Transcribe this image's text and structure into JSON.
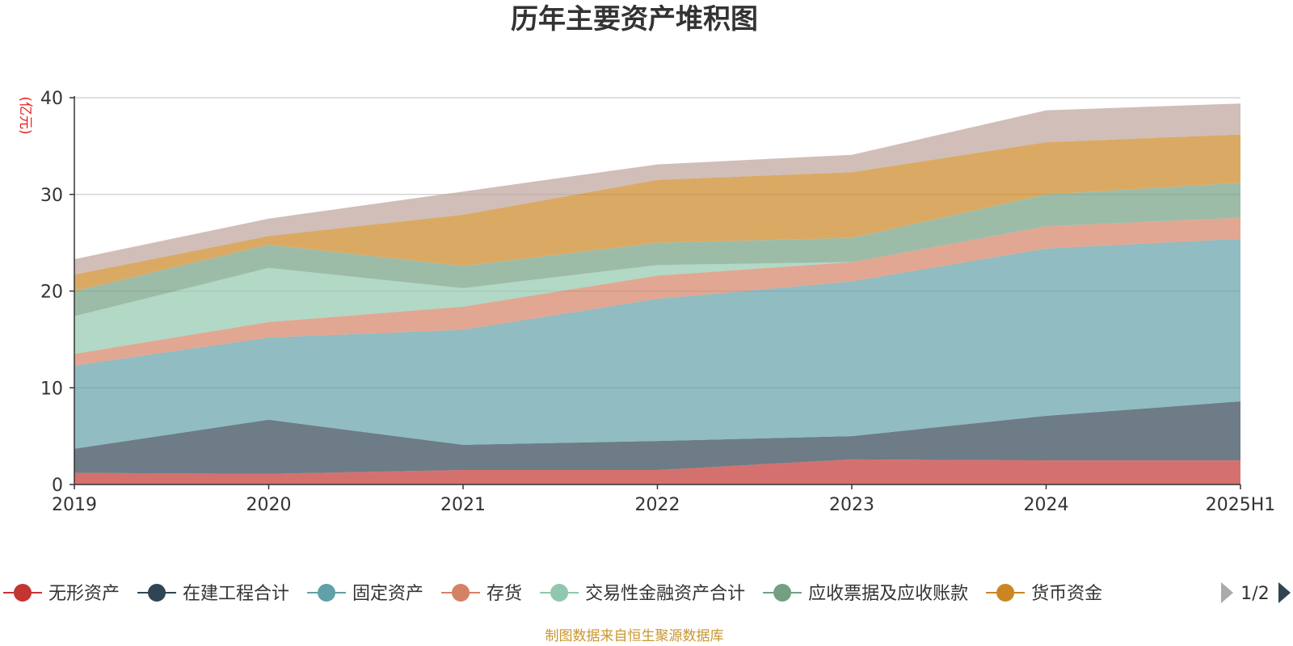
{
  "chart_data": {
    "type": "area",
    "stacked": true,
    "title": "历年主要资产堆积图",
    "y_unit": "(亿元)",
    "categories": [
      "2019",
      "2020",
      "2021",
      "2022",
      "2023",
      "2024",
      "2025H1"
    ],
    "ylim": [
      0,
      40
    ],
    "yticks": [
      0,
      10,
      20,
      30,
      40
    ],
    "grid": true,
    "series": [
      {
        "name": "无形资产",
        "color": "#c23531",
        "values": [
          1.2,
          1.1,
          1.5,
          1.5,
          2.6,
          2.5,
          2.5
        ]
      },
      {
        "name": "在建工程合计",
        "color": "#2f4554",
        "values": [
          2.5,
          5.6,
          2.6,
          3.0,
          2.4,
          4.6,
          6.1
        ]
      },
      {
        "name": "固定资产",
        "color": "#61a0a8",
        "values": [
          8.6,
          8.5,
          11.9,
          14.7,
          16.0,
          17.3,
          16.8
        ]
      },
      {
        "name": "存货",
        "color": "#d48265",
        "values": [
          1.2,
          1.6,
          2.4,
          2.4,
          2.0,
          2.3,
          2.2
        ]
      },
      {
        "name": "交易性金融资产合计",
        "color": "#91c7ae",
        "values": [
          3.9,
          5.6,
          1.9,
          1.1,
          0.0,
          0.0,
          0.0
        ]
      },
      {
        "name": "应收票据及应收账款",
        "color": "#749f83",
        "values": [
          2.6,
          2.4,
          2.3,
          2.3,
          2.5,
          3.3,
          3.6
        ]
      },
      {
        "name": "货币资金",
        "color": "#ca8622",
        "values": [
          1.7,
          0.9,
          5.3,
          6.5,
          6.8,
          5.4,
          5.0
        ]
      },
      {
        "name": "",
        "color": "#bda29a",
        "values": [
          1.6,
          1.8,
          2.4,
          1.6,
          1.8,
          3.3,
          3.2
        ]
      }
    ],
    "legend": {
      "position": "bottom",
      "page": "1/2"
    }
  },
  "source_note": "制图数据来自恒生聚源数据库"
}
